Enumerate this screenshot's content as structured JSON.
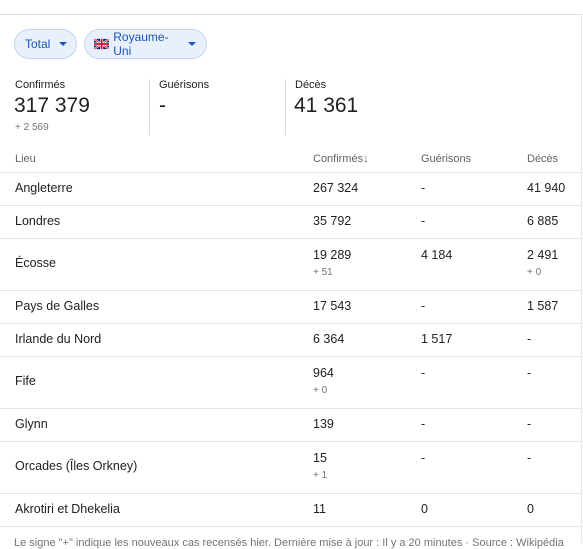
{
  "filters": {
    "metric": "Total",
    "region": "Royaume-Uni"
  },
  "summary": {
    "confirmed": {
      "label": "Confirmés",
      "value": "317 379",
      "delta": "+ 2 569"
    },
    "recovered": {
      "label": "Guérisons",
      "value": "-"
    },
    "deaths": {
      "label": "Décès",
      "value": "41 361"
    }
  },
  "table": {
    "headers": [
      "Lieu",
      "Confirmés↓",
      "Guérisons",
      "Décès"
    ],
    "rows": [
      {
        "place": "Angleterre",
        "confirmed": "267 324",
        "recovered": "-",
        "deaths": "41 940"
      },
      {
        "place": "Londres",
        "confirmed": "35 792",
        "recovered": "-",
        "deaths": "6 885"
      },
      {
        "place": "Écosse",
        "confirmed": "19 289",
        "confirmed_delta": "+ 51",
        "recovered": "4 184",
        "deaths": "2 491",
        "deaths_delta": "+ 0"
      },
      {
        "place": "Pays de Galles",
        "confirmed": "17 543",
        "recovered": "-",
        "deaths": "1 587"
      },
      {
        "place": "Irlande du Nord",
        "confirmed": "6 364",
        "recovered": "1 517",
        "deaths": "-"
      },
      {
        "place": "Fife",
        "confirmed": "964",
        "confirmed_delta": "+ 0",
        "recovered": "-",
        "deaths": "-"
      },
      {
        "place": "Glynn",
        "confirmed": "139",
        "recovered": "-",
        "deaths": "-"
      },
      {
        "place": "Orcades (Îles Orkney)",
        "confirmed": "15",
        "confirmed_delta": "+ 1",
        "recovered": "-",
        "deaths": "-"
      },
      {
        "place": "Akrotiri et Dhekelia",
        "confirmed": "11",
        "recovered": "0",
        "deaths": "0"
      }
    ]
  },
  "footer": "Le signe \"+\" indique les nouveaux cas recensés hier. Dernière mise à jour : Il y a 20 minutes · Source : Wikipédia"
}
